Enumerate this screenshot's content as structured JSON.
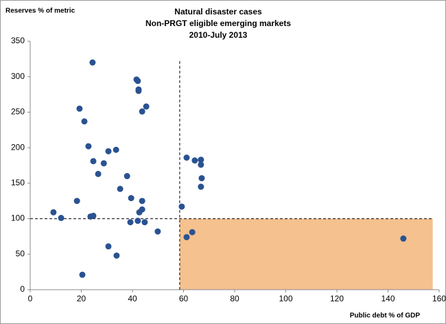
{
  "chart_data": {
    "type": "scatter",
    "title": [
      "Natural disaster cases",
      "Non-PRGT eligible emerging markets",
      "2010-July 2013"
    ],
    "y_label": "Reserves % of metric",
    "x_label": "Public debt % of GDP",
    "color": "#2a5291",
    "x": [
      24.4,
      41.6,
      42.1,
      42.4,
      42.4,
      19.3,
      21.2,
      45.4,
      43.8,
      22.8,
      30.6,
      33.6,
      24.7,
      28.8,
      37.9,
      26.6,
      35.2,
      39.5,
      43.8,
      18.3,
      9.1,
      12.1,
      24.7,
      23.6,
      43.8,
      42.7,
      39.2,
      42.1,
      44.8,
      49.9,
      30.6,
      33.8,
      20.4,
      59.3,
      61.2,
      64.4,
      66.8,
      66.8,
      67.1,
      66.8,
      61.2,
      63.4,
      146
    ],
    "values": [
      320,
      296,
      294,
      282,
      280,
      255,
      237,
      258,
      251,
      202,
      195,
      197,
      181,
      178,
      160,
      163,
      142,
      129,
      125,
      125,
      109,
      101,
      104,
      103,
      113,
      109,
      95,
      97,
      95,
      82,
      61,
      48,
      21,
      117,
      186,
      182,
      183,
      176,
      157,
      145,
      74,
      81,
      72
    ],
    "xlim": [
      0,
      160
    ],
    "xticks": [
      0,
      20,
      40,
      60,
      80,
      100,
      120,
      140,
      160
    ],
    "ylim": [
      0,
      350
    ],
    "yticks": [
      0,
      50,
      100,
      150,
      200,
      250,
      300,
      350
    ],
    "reference_lines": {
      "x": 58.5,
      "x_line_top": 325,
      "y": 100,
      "y_line_end": 157.5
    },
    "shaded_region": {
      "xlim": [
        58.5,
        157.5
      ],
      "ylim": [
        0,
        100
      ],
      "color": "#f4c18f"
    },
    "grid": false
  }
}
